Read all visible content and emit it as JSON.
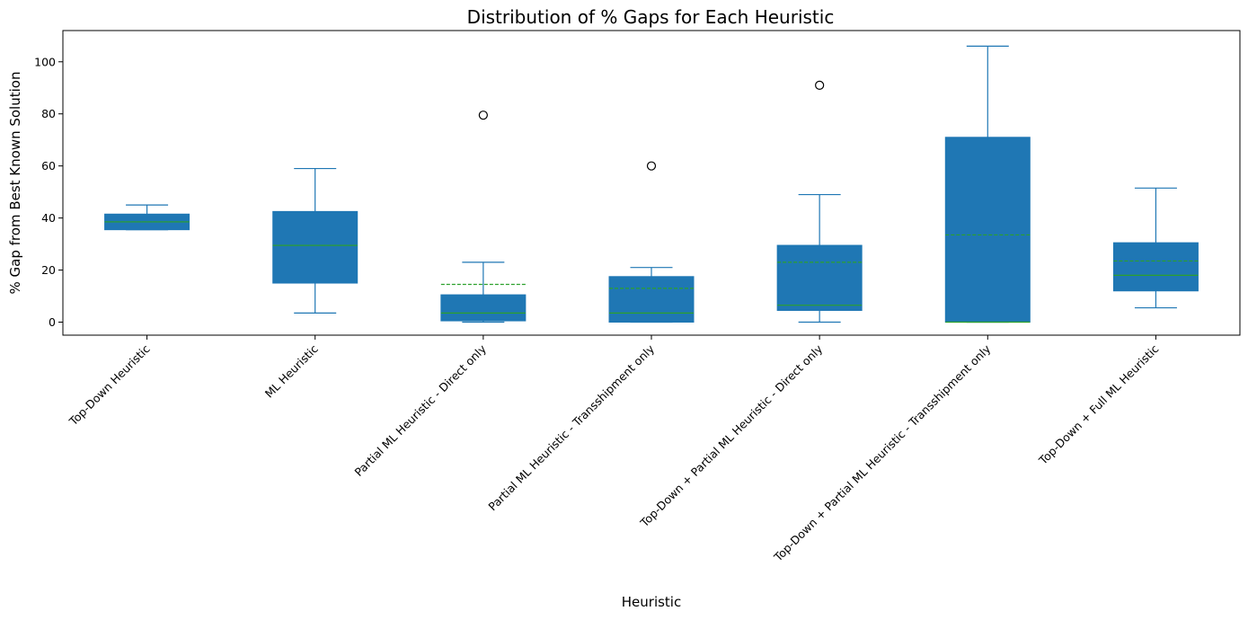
{
  "chart_data": {
    "type": "box",
    "title": "Distribution of % Gaps for Each Heuristic",
    "xlabel": "Heuristic",
    "ylabel": "% Gap from Best Known Solution",
    "ylim": [
      -5,
      112
    ],
    "yticks": [
      0,
      20,
      40,
      60,
      80,
      100
    ],
    "grid": false,
    "legend": "none",
    "colors": {
      "box_fill": "#1f77b4",
      "whisker": "#1f77b4",
      "median": "#2ca02c",
      "mean": "#2ca02c",
      "flier": "#000000"
    },
    "categories": [
      "Top-Down Heuristic",
      "ML Heuristic",
      "Partial ML Heuristic - Direct only",
      "Partial ML Heuristic - Transshipment only",
      "Top-Down + Partial ML Heuristic - Direct only",
      "Top-Down + Partial ML Heuristic - Transshipment only",
      "Top-Down + Full ML Heuristic"
    ],
    "boxes": [
      {
        "whislo": 35.5,
        "q1": 35.5,
        "med": 38.5,
        "q3": 41.5,
        "whishi": 45,
        "mean": 38.5,
        "fliers": []
      },
      {
        "whislo": 3.5,
        "q1": 15,
        "med": 29.5,
        "q3": 42.5,
        "whishi": 59,
        "mean": 29.5,
        "fliers": []
      },
      {
        "whislo": 0,
        "q1": 0.5,
        "med": 3.5,
        "q3": 10.5,
        "whishi": 23,
        "mean": 14.5,
        "fliers": [
          79.5
        ]
      },
      {
        "whislo": 0,
        "q1": 0,
        "med": 3.5,
        "q3": 17.5,
        "whishi": 21,
        "mean": 13,
        "fliers": [
          60
        ]
      },
      {
        "whislo": 0,
        "q1": 4.5,
        "med": 6.5,
        "q3": 29.5,
        "whishi": 49,
        "mean": 23,
        "fliers": [
          91
        ]
      },
      {
        "whislo": 0,
        "q1": 0,
        "med": 0,
        "q3": 71,
        "whishi": 106,
        "mean": 33.5,
        "fliers": []
      },
      {
        "whislo": 5.5,
        "q1": 12,
        "med": 18,
        "q3": 30.5,
        "whishi": 51.5,
        "mean": 23.5,
        "fliers": []
      }
    ]
  }
}
